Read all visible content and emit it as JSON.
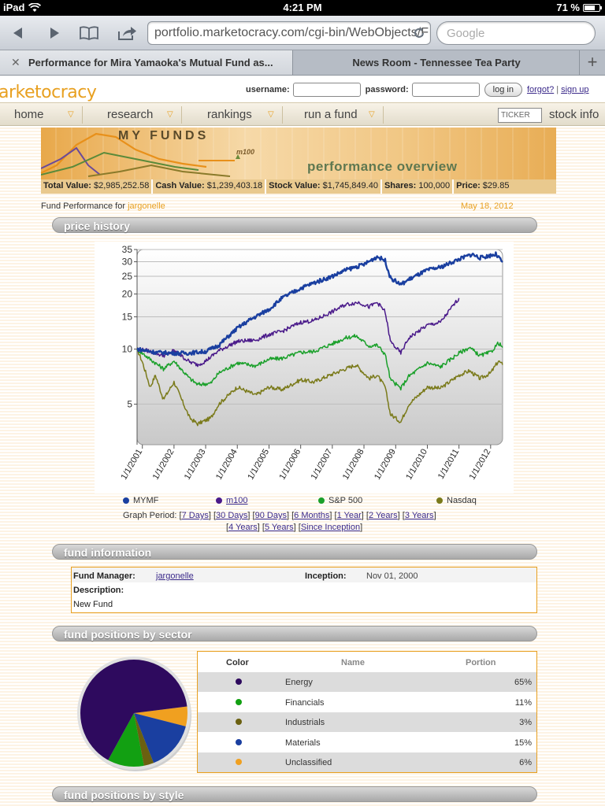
{
  "status_bar": {
    "device": "iPad",
    "time": "4:21 PM",
    "battery": "71 %",
    "battery_level": 0.71
  },
  "browser": {
    "url": "portfolio.marketocracy.com/cgi-bin/WebObjects/F",
    "search_placeholder": "Google",
    "tabs": [
      {
        "label": "Performance for Mira Yamaoka's Mutual Fund as...",
        "active": true
      },
      {
        "label": "News Room - Tennessee Tea Party",
        "active": false
      }
    ]
  },
  "site": {
    "logo": "arketocracy",
    "login": {
      "username_label": "username:",
      "password_label": "password:",
      "login_button": "log in",
      "forgot": "forgot?",
      "separator": "|",
      "signup": "sign up"
    },
    "nav": [
      {
        "label": "home"
      },
      {
        "label": "research"
      },
      {
        "label": "rankings"
      },
      {
        "label": "run a fund"
      }
    ],
    "ticker_placeholder": "TICKER",
    "stock_info": "stock info"
  },
  "banner": {
    "title": "MY FUNDS",
    "m100": "m100",
    "subtitle": "performance overview"
  },
  "summary": [
    {
      "label": "Total Value:",
      "value": "$2,985,252.58"
    },
    {
      "label": "Cash Value:",
      "value": "$1,239,403.18"
    },
    {
      "label": "Stock Value:",
      "value": "$1,745,849.40"
    },
    {
      "label": "Shares:",
      "value": "100,000"
    },
    {
      "label": "Price:",
      "value": "$29.85"
    }
  ],
  "fund_performance": {
    "label": "Fund Performance for",
    "manager": "jargonelle",
    "date": "May 18, 2012"
  },
  "sections": {
    "price_history": "price history",
    "fund_information": "fund information",
    "positions_sector": "fund positions by sector",
    "positions_style": "fund positions by style"
  },
  "chart_data": {
    "type": "line",
    "y_scale": "log",
    "ylim": [
      3,
      35
    ],
    "yticks": [
      5,
      10,
      15,
      20,
      25,
      30,
      35
    ],
    "x_tick_labels": [
      "1/1/2001",
      "1/1/2002",
      "1/1/2003",
      "1/1/2004",
      "1/1/2005",
      "1/1/2006",
      "1/1/2007",
      "1/1/2008",
      "1/1/2009",
      "1/1/2010",
      "1/1/2011",
      "1/1/2012"
    ],
    "xlim": [
      "2000-11-01",
      "2012-05-18"
    ],
    "grid": true,
    "legend_position": "bottom",
    "series": [
      {
        "name": "MYMF",
        "color": "#1a3fa0",
        "points": [
          [
            "2000-11-01",
            10
          ],
          [
            "2001-06-01",
            9.6
          ],
          [
            "2002-01-01",
            9.5
          ],
          [
            "2002-06-01",
            9.5
          ],
          [
            "2003-01-01",
            9.7
          ],
          [
            "2003-06-01",
            10.5
          ],
          [
            "2004-01-01",
            13
          ],
          [
            "2004-06-01",
            14.5
          ],
          [
            "2005-01-01",
            16.5
          ],
          [
            "2005-06-01",
            19
          ],
          [
            "2006-01-01",
            21.5
          ],
          [
            "2006-06-01",
            23
          ],
          [
            "2007-01-01",
            25
          ],
          [
            "2007-06-01",
            27
          ],
          [
            "2008-01-01",
            29
          ],
          [
            "2008-06-01",
            32
          ],
          [
            "2008-09-01",
            30.5
          ],
          [
            "2008-11-01",
            24.5
          ],
          [
            "2009-03-01",
            22.5
          ],
          [
            "2009-06-01",
            24
          ],
          [
            "2010-01-01",
            27
          ],
          [
            "2010-06-01",
            28
          ],
          [
            "2011-01-01",
            31
          ],
          [
            "2011-06-01",
            33
          ],
          [
            "2011-09-01",
            31.5
          ],
          [
            "2012-01-01",
            32.5
          ],
          [
            "2012-03-01",
            33
          ],
          [
            "2012-05-18",
            29.85
          ]
        ]
      },
      {
        "name": "m100",
        "color": "#4a1a8a",
        "points": [
          [
            "2000-11-01",
            10
          ],
          [
            "2001-03-01",
            9.8
          ],
          [
            "2001-09-01",
            9.2
          ],
          [
            "2002-01-01",
            9.8
          ],
          [
            "2002-07-01",
            8.5
          ],
          [
            "2002-10-01",
            8.2
          ],
          [
            "2003-01-01",
            8.6
          ],
          [
            "2003-06-01",
            9.8
          ],
          [
            "2004-01-01",
            11
          ],
          [
            "2004-08-01",
            11.2
          ],
          [
            "2005-01-01",
            12
          ],
          [
            "2005-06-01",
            12.5
          ],
          [
            "2006-01-01",
            14
          ],
          [
            "2006-06-01",
            14.3
          ],
          [
            "2007-01-01",
            16
          ],
          [
            "2007-06-01",
            17.5
          ],
          [
            "2007-11-01",
            18
          ],
          [
            "2008-03-01",
            17
          ],
          [
            "2008-06-01",
            18
          ],
          [
            "2008-09-01",
            16
          ],
          [
            "2008-11-01",
            11
          ],
          [
            "2009-03-01",
            9.5
          ],
          [
            "2009-06-01",
            11.5
          ],
          [
            "2010-01-01",
            13.5
          ],
          [
            "2010-06-01",
            14
          ],
          [
            "2011-01-01",
            19
          ]
        ]
      },
      {
        "name": "S&P 500",
        "color": "#1aa02a",
        "points": [
          [
            "2000-11-01",
            10
          ],
          [
            "2001-04-01",
            8.8
          ],
          [
            "2001-09-01",
            7.8
          ],
          [
            "2002-01-01",
            8.6
          ],
          [
            "2002-07-01",
            6.9
          ],
          [
            "2002-10-01",
            6.4
          ],
          [
            "2003-03-01",
            6.5
          ],
          [
            "2003-06-01",
            7.4
          ],
          [
            "2004-01-01",
            8.4
          ],
          [
            "2004-08-01",
            8.1
          ],
          [
            "2005-01-01",
            8.8
          ],
          [
            "2005-06-01",
            8.9
          ],
          [
            "2006-01-01",
            9.6
          ],
          [
            "2006-06-01",
            9.7
          ],
          [
            "2007-01-01",
            10.7
          ],
          [
            "2007-06-01",
            11.5
          ],
          [
            "2007-10-01",
            11.8
          ],
          [
            "2008-03-01",
            10.4
          ],
          [
            "2008-06-01",
            10.5
          ],
          [
            "2008-09-01",
            9.4
          ],
          [
            "2008-11-01",
            6.8
          ],
          [
            "2009-03-01",
            6.1
          ],
          [
            "2009-06-01",
            7.1
          ],
          [
            "2010-01-01",
            8.4
          ],
          [
            "2010-06-01",
            8
          ],
          [
            "2011-01-01",
            9.5
          ],
          [
            "2011-05-01",
            10.2
          ],
          [
            "2011-09-01",
            9.2
          ],
          [
            "2012-01-01",
            9.6
          ],
          [
            "2012-04-01",
            10.8
          ],
          [
            "2012-05-18",
            10.2
          ]
        ]
      },
      {
        "name": "Nasdaq",
        "color": "#7a7a1a",
        "points": [
          [
            "2000-11-01",
            10
          ],
          [
            "2001-01-01",
            8.5
          ],
          [
            "2001-04-01",
            6.2
          ],
          [
            "2001-06-01",
            7.2
          ],
          [
            "2001-09-01",
            5.3
          ],
          [
            "2002-01-01",
            6.6
          ],
          [
            "2002-07-01",
            4.2
          ],
          [
            "2002-10-01",
            3.9
          ],
          [
            "2003-03-01",
            4.2
          ],
          [
            "2003-06-01",
            5
          ],
          [
            "2004-01-01",
            6.2
          ],
          [
            "2004-08-01",
            5.6
          ],
          [
            "2005-01-01",
            6.2
          ],
          [
            "2005-06-01",
            6
          ],
          [
            "2006-01-01",
            6.8
          ],
          [
            "2006-06-01",
            6.6
          ],
          [
            "2007-01-01",
            7.3
          ],
          [
            "2007-06-01",
            7.8
          ],
          [
            "2007-10-01",
            8.2
          ],
          [
            "2008-03-01",
            6.9
          ],
          [
            "2008-06-01",
            7.2
          ],
          [
            "2008-09-01",
            6.2
          ],
          [
            "2008-11-01",
            4.4
          ],
          [
            "2009-03-01",
            4
          ],
          [
            "2009-06-01",
            5
          ],
          [
            "2010-01-01",
            6.2
          ],
          [
            "2010-06-01",
            6.1
          ],
          [
            "2011-01-01",
            7.2
          ],
          [
            "2011-05-01",
            7.6
          ],
          [
            "2011-09-01",
            6.9
          ],
          [
            "2012-01-01",
            7.4
          ],
          [
            "2012-04-01",
            8.6
          ],
          [
            "2012-05-18",
            8.2
          ]
        ]
      }
    ]
  },
  "legend": [
    {
      "name": "MYMF",
      "color": "#1a3fa0",
      "link": false
    },
    {
      "name": "m100",
      "color": "#4a1a8a",
      "link": true
    },
    {
      "name": "S&P 500",
      "color": "#1aa02a",
      "link": false
    },
    {
      "name": "Nasdaq",
      "color": "#7a7a1a",
      "link": false
    }
  ],
  "graph_period": {
    "label": "Graph Period:",
    "options": [
      "7 Days",
      "30 Days",
      "90 Days",
      "6 Months",
      "1 Year",
      "2 Years",
      "3 Years",
      "4 Years",
      "5 Years",
      "Since Inception"
    ]
  },
  "fund_info": {
    "manager_label": "Fund Manager:",
    "manager": "jargonelle",
    "inception_label": "Inception:",
    "inception": "Nov 01, 2000",
    "description_label": "Description:",
    "description": "New Fund"
  },
  "sector_table": {
    "headers": {
      "color": "Color",
      "name": "Name",
      "portion": "Portion"
    },
    "rows": [
      {
        "color": "#2e0a5e",
        "name": "Energy",
        "portion": "65%",
        "value": 65
      },
      {
        "color": "#12a012",
        "name": "Financials",
        "portion": "11%",
        "value": 11
      },
      {
        "color": "#6b6010",
        "name": "Industrials",
        "portion": "3%",
        "value": 3
      },
      {
        "color": "#1a3fa0",
        "name": "Materials",
        "portion": "15%",
        "value": 15
      },
      {
        "color": "#f0a020",
        "name": "Unclassified",
        "portion": "6%",
        "value": 6
      }
    ]
  }
}
